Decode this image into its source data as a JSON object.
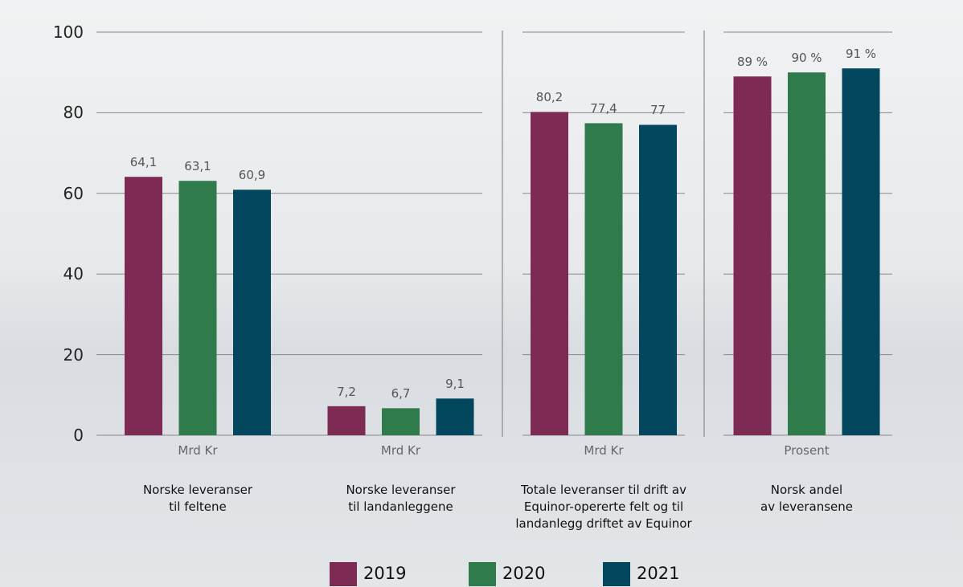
{
  "chart_data": {
    "type": "bar",
    "categories": [
      "Norske leveranser\ntil feltene",
      "Norske leveranser\ntil landanleggene",
      "Totale leveranser til drift av\nEquinor-opererte felt og til\nlandanlegg driftet av Equinor",
      "Norsk andel\nav leveransene"
    ],
    "units": [
      "Mrd Kr",
      "Mrd Kr",
      "Mrd Kr",
      "Prosent"
    ],
    "series": [
      {
        "name": "2019",
        "color": "#7d2b54",
        "values": [
          64.1,
          7.2,
          80.2,
          89
        ],
        "value_labels": [
          "64,1",
          "7,2",
          "80,2",
          "89 %"
        ]
      },
      {
        "name": "2020",
        "color": "#2f7b4b",
        "values": [
          63.1,
          6.7,
          77.4,
          90
        ],
        "value_labels": [
          "63,1",
          "6,7",
          "77,4",
          "90 %"
        ]
      },
      {
        "name": "2021",
        "color": "#03475e",
        "values": [
          60.9,
          9.1,
          77,
          91
        ],
        "value_labels": [
          "60,9",
          "9,1",
          "77",
          "91 %"
        ]
      }
    ],
    "ylim": [
      0,
      100
    ],
    "yticks": [
      0,
      20,
      40,
      60,
      80,
      100
    ],
    "grid": true,
    "legend": "bottom"
  }
}
